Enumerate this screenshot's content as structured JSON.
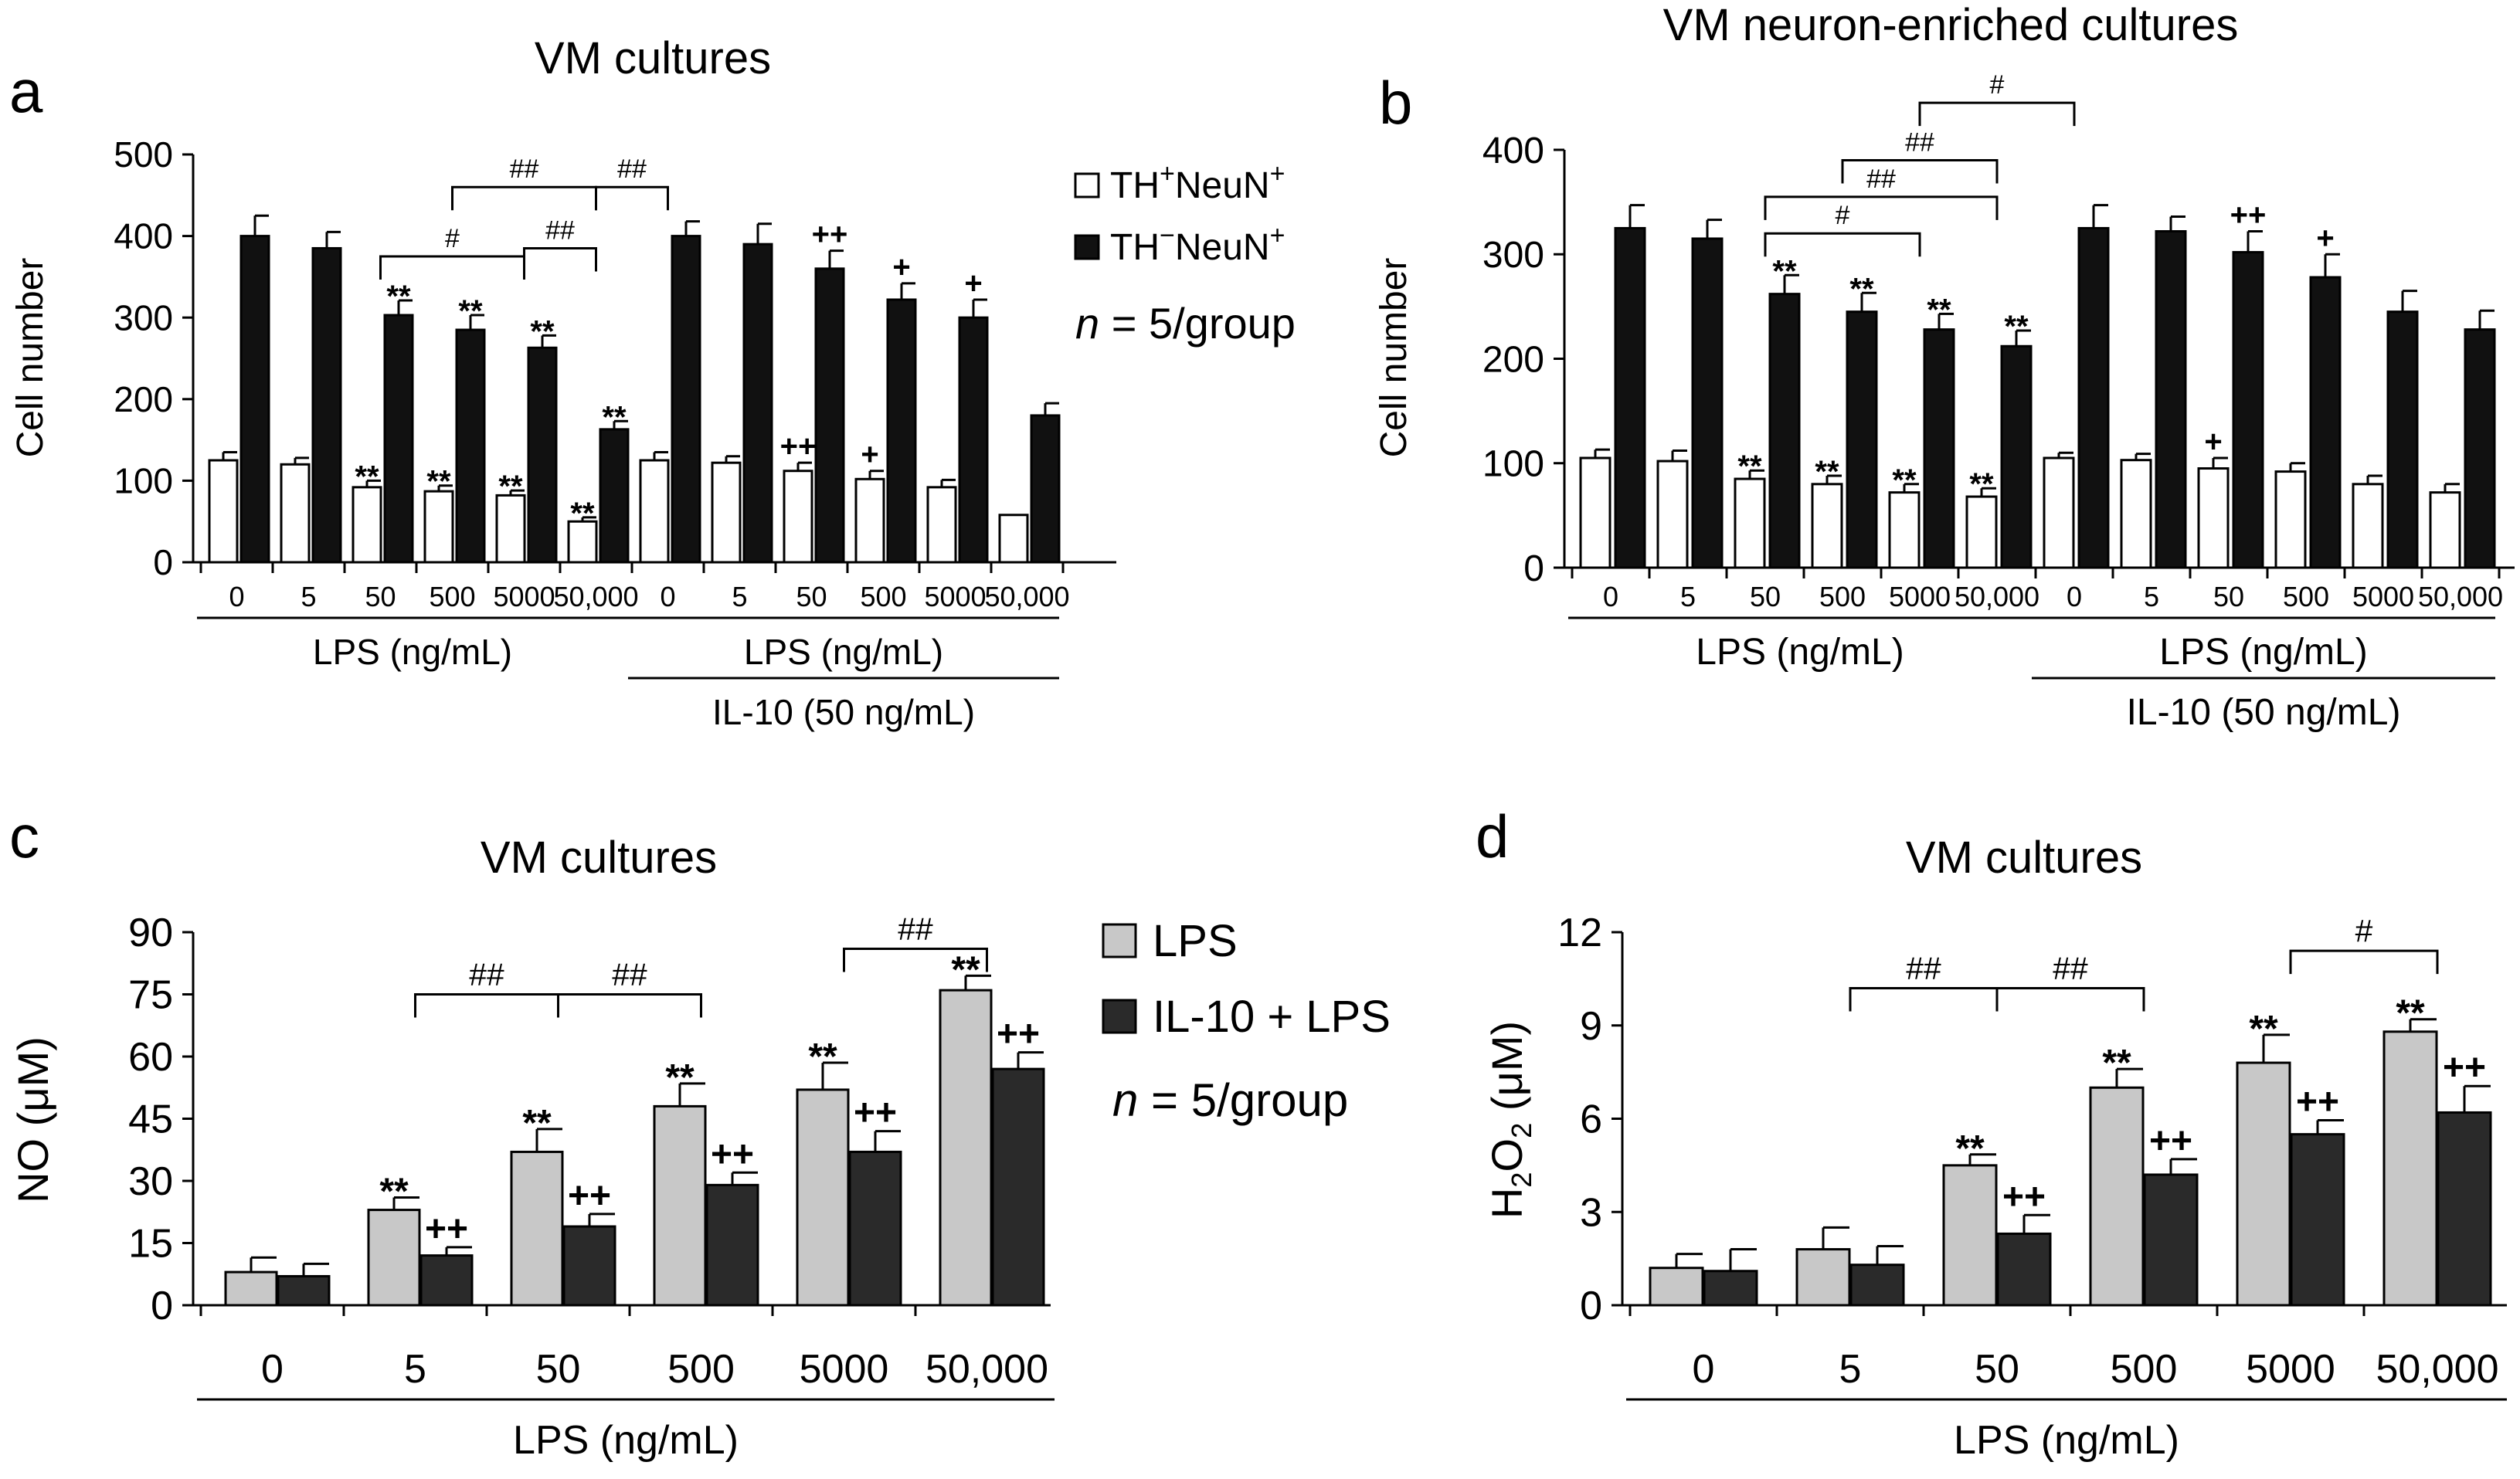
{
  "chart_data": [
    {
      "panel": "a",
      "type": "bar",
      "title": "VM cultures",
      "ylabel": "Cell number",
      "ylim": [
        0,
        500
      ],
      "yticks": [
        "0",
        "100",
        "200",
        "300",
        "400",
        "500"
      ],
      "categories": [
        "0",
        "5",
        "50",
        "500",
        "5000",
        "50,000",
        "0",
        "5",
        "50",
        "500",
        "5000",
        "50,000"
      ],
      "group_labels": [
        "LPS (ng/mL)",
        "LPS (ng/mL)"
      ],
      "group_sublabel": "IL-10 (50 ng/mL)",
      "legend": {
        "series1": "TH+NeuN+",
        "series2": "TH−NeuN+",
        "sup1": "+",
        "sup2": "−",
        "sup3": "+",
        "n_text": "n",
        "n_rest": " = 5/group"
      },
      "series": [
        {
          "name": "TH+NeuN+",
          "fill": "#ffffff",
          "values": [
            125,
            120,
            92,
            87,
            82,
            50,
            125,
            122,
            112,
            102,
            92,
            58
          ],
          "errors": [
            10,
            8,
            8,
            7,
            6,
            5,
            10,
            8,
            10,
            10,
            9,
            0
          ],
          "labels": [
            "",
            "",
            "**",
            "**",
            "**",
            "**",
            "",
            "",
            "++",
            "+",
            "",
            ""
          ]
        },
        {
          "name": "TH−NeuN+",
          "fill": "#111111",
          "values": [
            400,
            385,
            303,
            285,
            263,
            163,
            400,
            390,
            360,
            322,
            300,
            180
          ],
          "errors": [
            25,
            20,
            18,
            18,
            15,
            10,
            18,
            25,
            22,
            20,
            22,
            15
          ],
          "labels": [
            "",
            "",
            "**",
            "**",
            "**",
            "**",
            "",
            "",
            "++",
            "+",
            "+",
            ""
          ]
        }
      ],
      "brackets": [
        {
          "from": 2,
          "to": 4,
          "y": 375,
          "label": "#"
        },
        {
          "from": 3,
          "to": 5,
          "y": 460,
          "label": "##"
        },
        {
          "from": 4,
          "to": 5,
          "y": 385,
          "label": "##"
        },
        {
          "from": 5,
          "to": 6,
          "y": 460,
          "label": "##"
        }
      ]
    },
    {
      "panel": "b",
      "type": "bar",
      "title": "VM neuron-enriched cultures",
      "ylabel": "Cell number",
      "ylim": [
        0,
        400
      ],
      "yticks": [
        "0",
        "100",
        "200",
        "300",
        "400"
      ],
      "categories": [
        "0",
        "5",
        "50",
        "500",
        "5000",
        "50,000",
        "0",
        "5",
        "50",
        "500",
        "5000",
        "50,000"
      ],
      "group_labels": [
        "LPS (ng/mL)",
        "LPS (ng/mL)"
      ],
      "group_sublabel": "IL-10 (50 ng/mL)",
      "series": [
        {
          "name": "TH+NeuN+",
          "fill": "#ffffff",
          "values": [
            105,
            102,
            85,
            80,
            72,
            68,
            105,
            103,
            95,
            92,
            80,
            72
          ],
          "errors": [
            8,
            10,
            8,
            8,
            8,
            8,
            5,
            6,
            10,
            8,
            8,
            8
          ],
          "labels": [
            "",
            "",
            "**",
            "**",
            "**",
            "**",
            "",
            "",
            "+",
            "",
            "",
            ""
          ]
        },
        {
          "name": "TH−NeuN+",
          "fill": "#111111",
          "values": [
            325,
            315,
            262,
            245,
            228,
            212,
            325,
            322,
            302,
            278,
            245,
            228
          ],
          "errors": [
            22,
            18,
            18,
            18,
            15,
            15,
            22,
            14,
            20,
            22,
            20,
            18
          ],
          "labels": [
            "",
            "",
            "**",
            "**",
            "**",
            "**",
            "",
            "",
            "++",
            "+",
            "",
            ""
          ]
        }
      ],
      "brackets": [
        {
          "from": 2,
          "to": 4,
          "y": 320,
          "label": "#"
        },
        {
          "from": 2,
          "to": 5,
          "y": 355,
          "label": "##"
        },
        {
          "from": 3,
          "to": 5,
          "y": 390,
          "label": "##"
        },
        {
          "from": 4,
          "to": 6,
          "y": 445,
          "label": "#"
        }
      ]
    },
    {
      "panel": "c",
      "type": "bar",
      "title": "VM cultures",
      "ylabel": "NO (μM)",
      "ylim": [
        0,
        90
      ],
      "yticks": [
        "0",
        "15",
        "30",
        "45",
        "60",
        "75",
        "90"
      ],
      "categories": [
        "0",
        "5",
        "50",
        "500",
        "5000",
        "50,000"
      ],
      "xlabel": "LPS (ng/mL)",
      "legend": {
        "series1": "LPS",
        "series2": "IL-10 + LPS",
        "n_text": "n",
        "n_rest": " = 5/group"
      },
      "series": [
        {
          "name": "LPS",
          "fill": "#c8c8c8",
          "values": [
            8,
            23,
            37,
            48,
            52,
            76
          ],
          "errors": [
            3.5,
            3,
            5.5,
            5.5,
            6.5,
            3.5
          ],
          "labels": [
            "",
            "**",
            "**",
            "**",
            "**",
            "**"
          ]
        },
        {
          "name": "IL-10 + LPS",
          "fill": "#2a2a2a",
          "values": [
            7,
            12,
            19,
            29,
            37,
            57
          ],
          "errors": [
            3,
            2,
            3,
            3,
            5,
            4
          ],
          "labels": [
            "",
            "++",
            "++",
            "++",
            "++",
            "++"
          ]
        }
      ],
      "brackets": [
        {
          "from": 1,
          "to": 2,
          "y": 75,
          "label": "##"
        },
        {
          "from": 2,
          "to": 3,
          "y": 75,
          "label": "##"
        },
        {
          "from": 4,
          "to": 5,
          "y": 86,
          "label": "##"
        }
      ]
    },
    {
      "panel": "d",
      "type": "bar",
      "title": "VM cultures",
      "ylabel": "H2O2 (μM)",
      "ylabel_parts": [
        "H",
        "2",
        "O",
        "2",
        " (μM)"
      ],
      "ylim": [
        0,
        12
      ],
      "yticks": [
        "0",
        "3",
        "6",
        "9",
        "12"
      ],
      "categories": [
        "0",
        "5",
        "50",
        "500",
        "5000",
        "50,000"
      ],
      "xlabel": "LPS (ng/mL)",
      "series": [
        {
          "name": "LPS",
          "fill": "#c8c8c8",
          "values": [
            1.2,
            1.8,
            4.5,
            7.0,
            7.8,
            8.8
          ],
          "errors": [
            0.45,
            0.7,
            0.35,
            0.6,
            0.9,
            0.4
          ],
          "labels": [
            "",
            "",
            "**",
            "**",
            "**",
            "**"
          ]
        },
        {
          "name": "IL-10 + LPS",
          "fill": "#2a2a2a",
          "values": [
            1.1,
            1.3,
            2.3,
            4.2,
            5.5,
            6.2
          ],
          "errors": [
            0.7,
            0.6,
            0.6,
            0.5,
            0.45,
            0.85
          ],
          "labels": [
            "",
            "",
            "++",
            "++",
            "++",
            "++"
          ]
        }
      ],
      "brackets": [
        {
          "from": 1,
          "to": 2,
          "y": 10.2,
          "label": "##"
        },
        {
          "from": 2,
          "to": 3,
          "y": 10.2,
          "label": "##"
        },
        {
          "from": 4,
          "to": 5,
          "y": 11.4,
          "label": "#"
        }
      ]
    }
  ],
  "panel_letters": [
    "a",
    "b",
    "c",
    "d"
  ]
}
